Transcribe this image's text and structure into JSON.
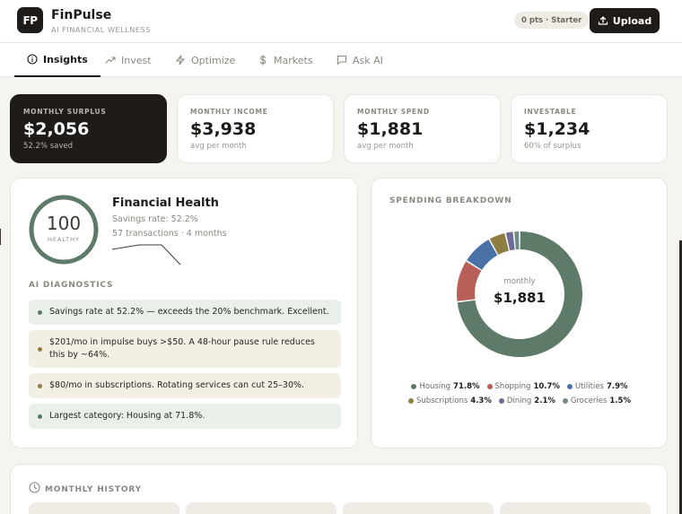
{
  "app": {
    "logo_text": "FP",
    "name": "FinPulse",
    "tagline": "AI FINANCIAL WELLNESS",
    "points_badge": "0 pts · Starter",
    "upload_label": "Upload"
  },
  "tabs": [
    {
      "label": "Insights",
      "icon": "info-circle-icon",
      "active": true
    },
    {
      "label": "Invest",
      "icon": "trend-line-icon",
      "active": false
    },
    {
      "label": "Optimize",
      "icon": "lightning-icon",
      "active": false
    },
    {
      "label": "Markets",
      "icon": "dollar-icon",
      "active": false
    },
    {
      "label": "Ask AI",
      "icon": "chat-bubble-icon",
      "active": false
    }
  ],
  "stats": [
    {
      "label": "MONTHLY SURPLUS",
      "value": "$2,056",
      "sub": "52.2% saved"
    },
    {
      "label": "MONTHLY INCOME",
      "value": "$3,938",
      "sub": "avg per month"
    },
    {
      "label": "MONTHLY SPEND",
      "value": "$1,881",
      "sub": "avg per month"
    },
    {
      "label": "INVESTABLE",
      "value": "$1,234",
      "sub": "60% of surplus"
    }
  ],
  "health": {
    "score": "100",
    "score_label": "HEALTHY",
    "score_fraction": 1.0,
    "title": "Financial Health",
    "savings_rate": "Savings rate: 52.2%",
    "transactions": "57 transactions · 4 months",
    "ring_color": "#5e7a68"
  },
  "diagnostics": {
    "title": "AI DIAGNOSTICS",
    "items": [
      {
        "text": "Savings rate at 52.2% — exceeds the 20% benchmark. Excellent.",
        "tone": "green"
      },
      {
        "text": "$201/mo in impulse buys >$50. A 48-hour pause rule reduces this by ~64%.",
        "tone": "amber"
      },
      {
        "text": "$80/mo in subscriptions. Rotating services can cut 25–30%.",
        "tone": "amber"
      },
      {
        "text": "Largest category: Housing at 71.8%.",
        "tone": "green"
      }
    ]
  },
  "spending": {
    "title": "SPENDING BREAKDOWN",
    "center_label": "monthly",
    "center_value": "$1,881",
    "legend_row1": [
      0,
      1,
      2
    ],
    "legend_row2": [
      3,
      4,
      5
    ]
  },
  "chart_data": {
    "type": "pie",
    "categories": [
      "Housing",
      "Shopping",
      "Utilities",
      "Subscriptions",
      "Dining",
      "Groceries"
    ],
    "value_labels": [
      "71.8%",
      "10.7%",
      "7.9%",
      "4.3%",
      "2.1%",
      "1.5%"
    ],
    "values": [
      71.8,
      10.7,
      7.9,
      4.3,
      2.1,
      1.5
    ],
    "colors": [
      "#5e7a68",
      "#b95f5a",
      "#4a72a8",
      "#8f7e42",
      "#6b6a99",
      "#6f8c84"
    ],
    "legend": "bottom"
  },
  "history": {
    "title": "MONTHLY HISTORY"
  }
}
